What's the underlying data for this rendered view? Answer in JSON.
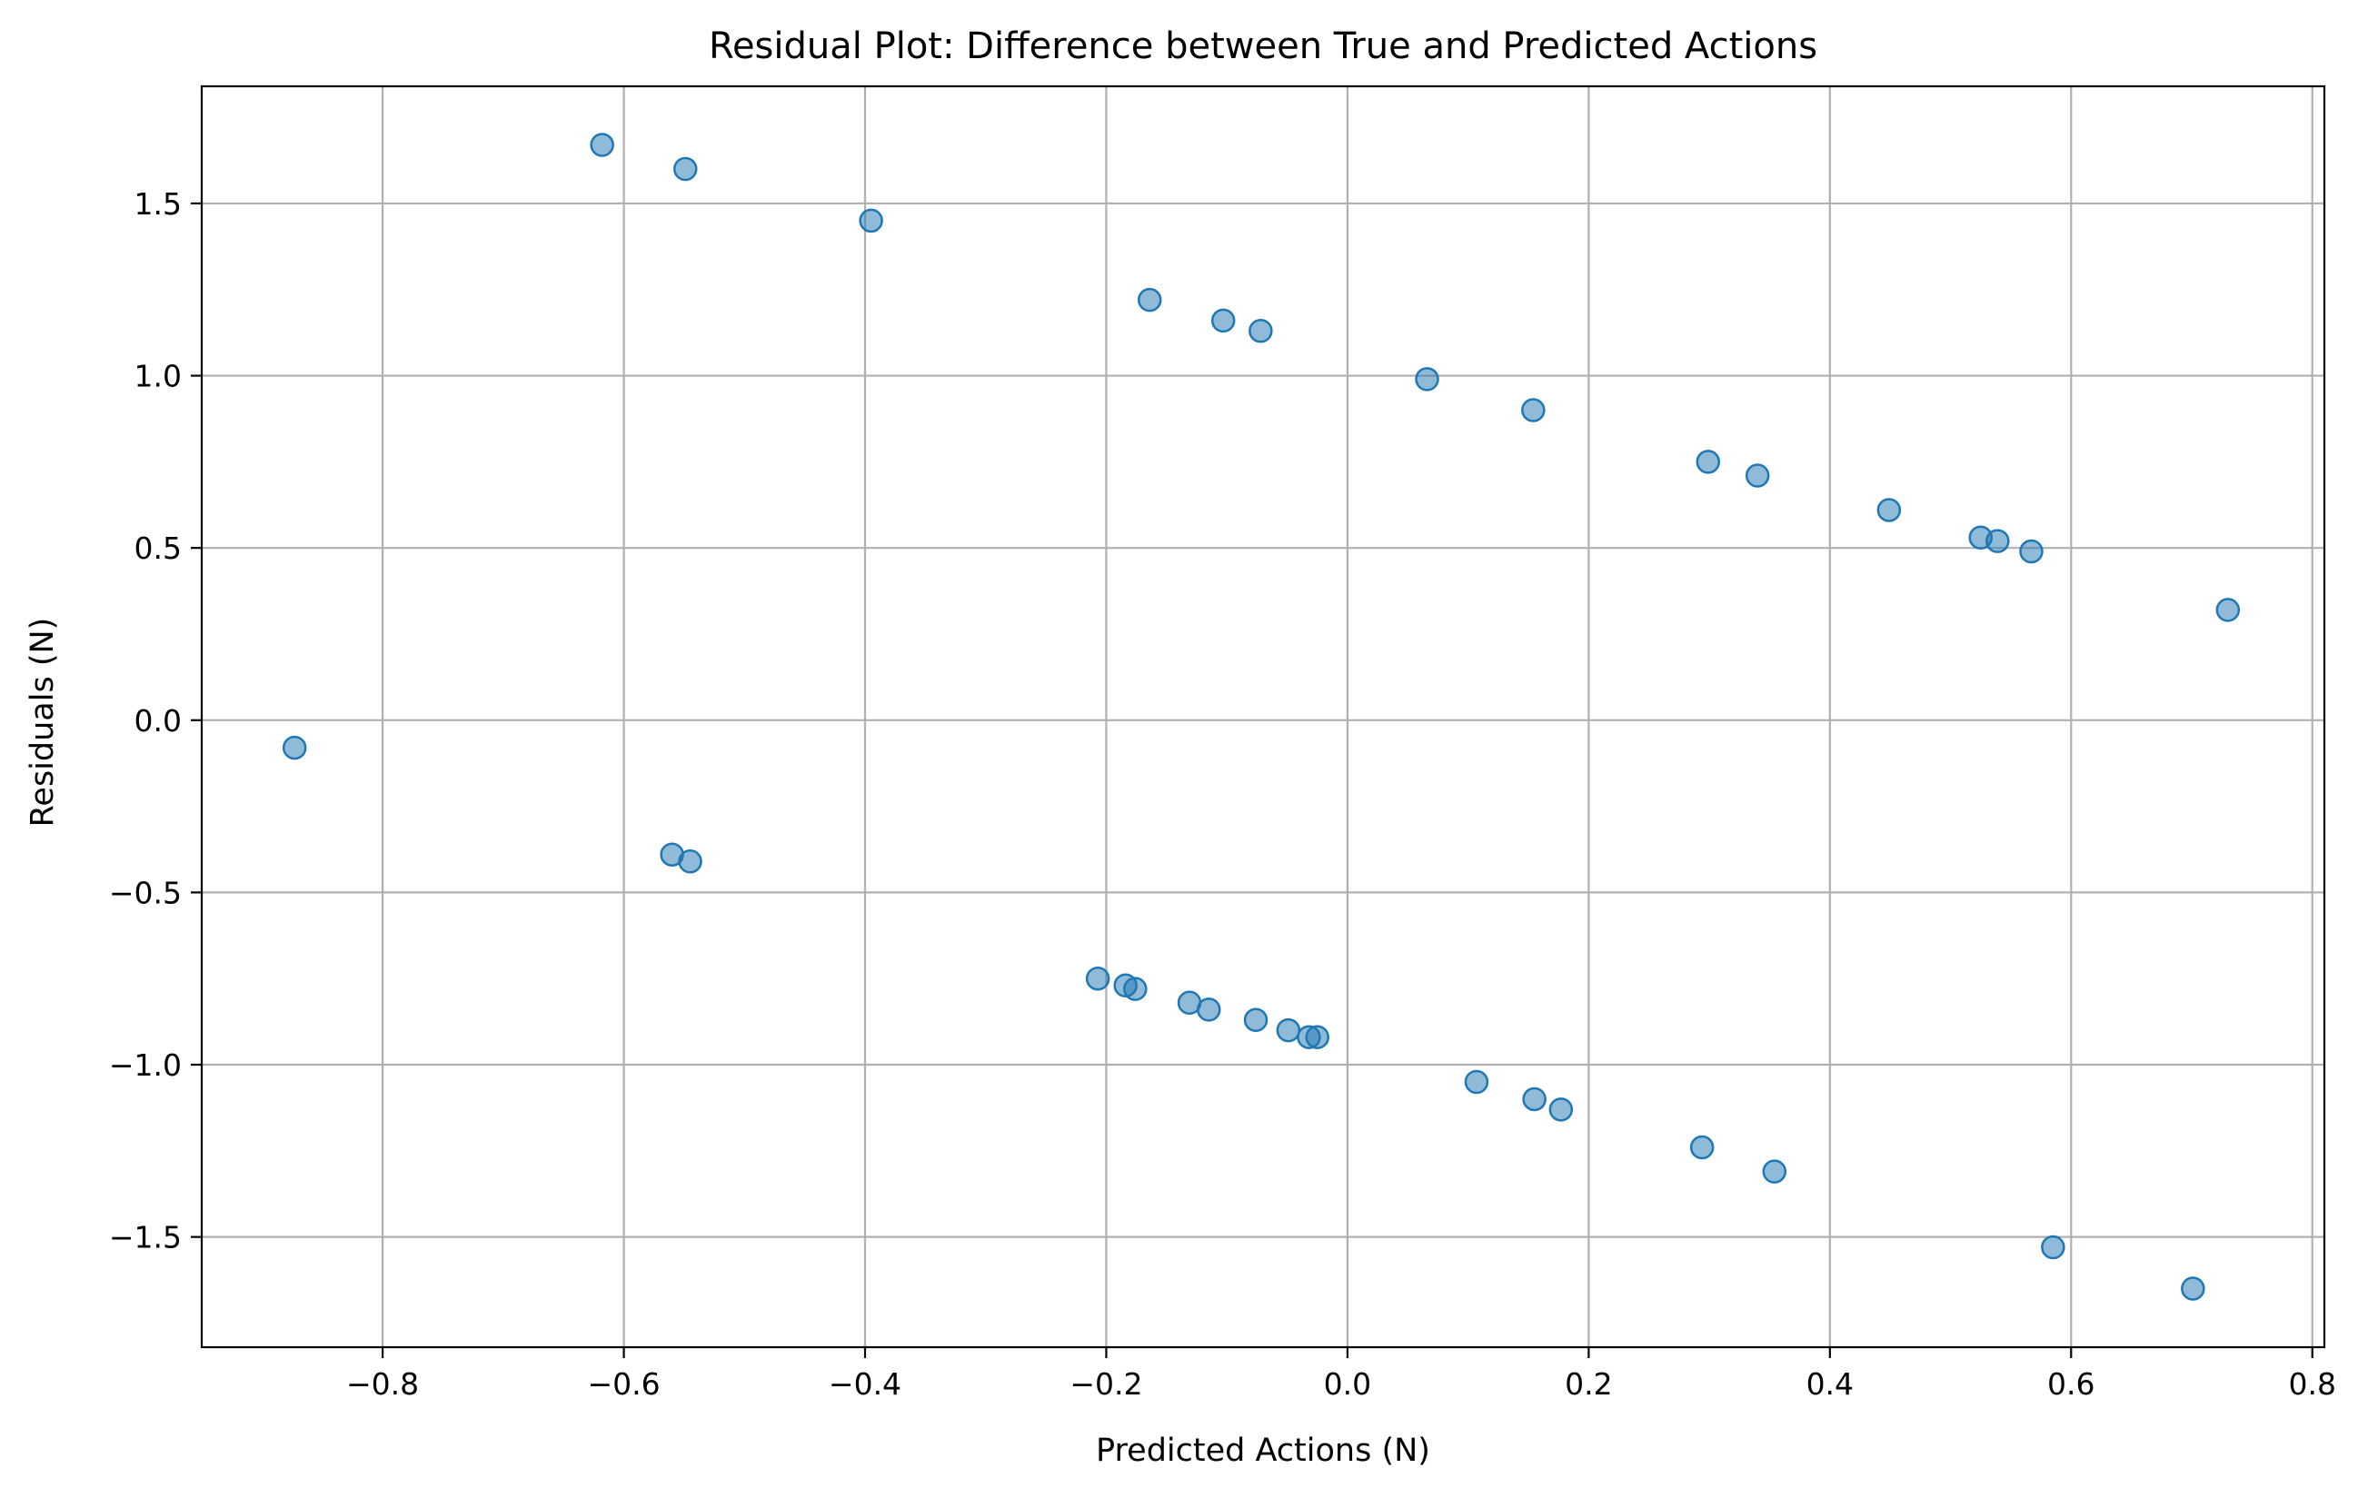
{
  "chart_data": {
    "type": "scatter",
    "title": "Residual Plot: Difference between True and Predicted Actions",
    "xlabel": "Predicted Actions (N)",
    "ylabel": "Residuals (N)",
    "xlim": [
      -0.95,
      0.81
    ],
    "ylim": [
      -1.82,
      1.84
    ],
    "grid": true,
    "xticks": [
      -0.8,
      -0.6,
      -0.4,
      -0.2,
      0.0,
      0.2,
      0.4,
      0.6,
      0.8
    ],
    "yticks": [
      -1.5,
      -1.0,
      -0.5,
      0.0,
      0.5,
      1.0,
      1.5
    ],
    "xtick_labels": [
      "−0.8",
      "−0.6",
      "−0.4",
      "−0.2",
      "0.0",
      "0.2",
      "0.4",
      "0.6",
      "0.8"
    ],
    "ytick_labels": [
      "−1.5",
      "−1.0",
      "−0.5",
      "0.0",
      "0.5",
      "1.0",
      "1.5"
    ],
    "marker_color": "#1f77b4",
    "points": [
      {
        "x": -0.873,
        "y": -0.08
      },
      {
        "x": -0.618,
        "y": 1.67
      },
      {
        "x": -0.549,
        "y": 1.6
      },
      {
        "x": -0.56,
        "y": -0.39
      },
      {
        "x": -0.545,
        "y": -0.41
      },
      {
        "x": -0.395,
        "y": 1.45
      },
      {
        "x": -0.207,
        "y": -0.75
      },
      {
        "x": -0.184,
        "y": -0.77
      },
      {
        "x": -0.176,
        "y": -0.78
      },
      {
        "x": -0.164,
        "y": 1.22
      },
      {
        "x": -0.131,
        "y": -0.82
      },
      {
        "x": -0.115,
        "y": -0.84
      },
      {
        "x": -0.103,
        "y": 1.16
      },
      {
        "x": -0.076,
        "y": -0.87
      },
      {
        "x": -0.072,
        "y": 1.13
      },
      {
        "x": -0.049,
        "y": -0.9
      },
      {
        "x": -0.032,
        "y": -0.92
      },
      {
        "x": -0.025,
        "y": -0.92
      },
      {
        "x": 0.066,
        "y": 0.99
      },
      {
        "x": 0.107,
        "y": -1.05
      },
      {
        "x": 0.154,
        "y": 0.9
      },
      {
        "x": 0.155,
        "y": -1.1
      },
      {
        "x": 0.177,
        "y": -1.13
      },
      {
        "x": 0.294,
        "y": -1.24
      },
      {
        "x": 0.299,
        "y": 0.75
      },
      {
        "x": 0.34,
        "y": 0.71
      },
      {
        "x": 0.354,
        "y": -1.31
      },
      {
        "x": 0.449,
        "y": 0.61
      },
      {
        "x": 0.525,
        "y": 0.53
      },
      {
        "x": 0.539,
        "y": 0.52
      },
      {
        "x": 0.567,
        "y": 0.49
      },
      {
        "x": 0.585,
        "y": -1.53
      },
      {
        "x": 0.701,
        "y": -1.65
      },
      {
        "x": 0.73,
        "y": 0.32
      }
    ]
  }
}
